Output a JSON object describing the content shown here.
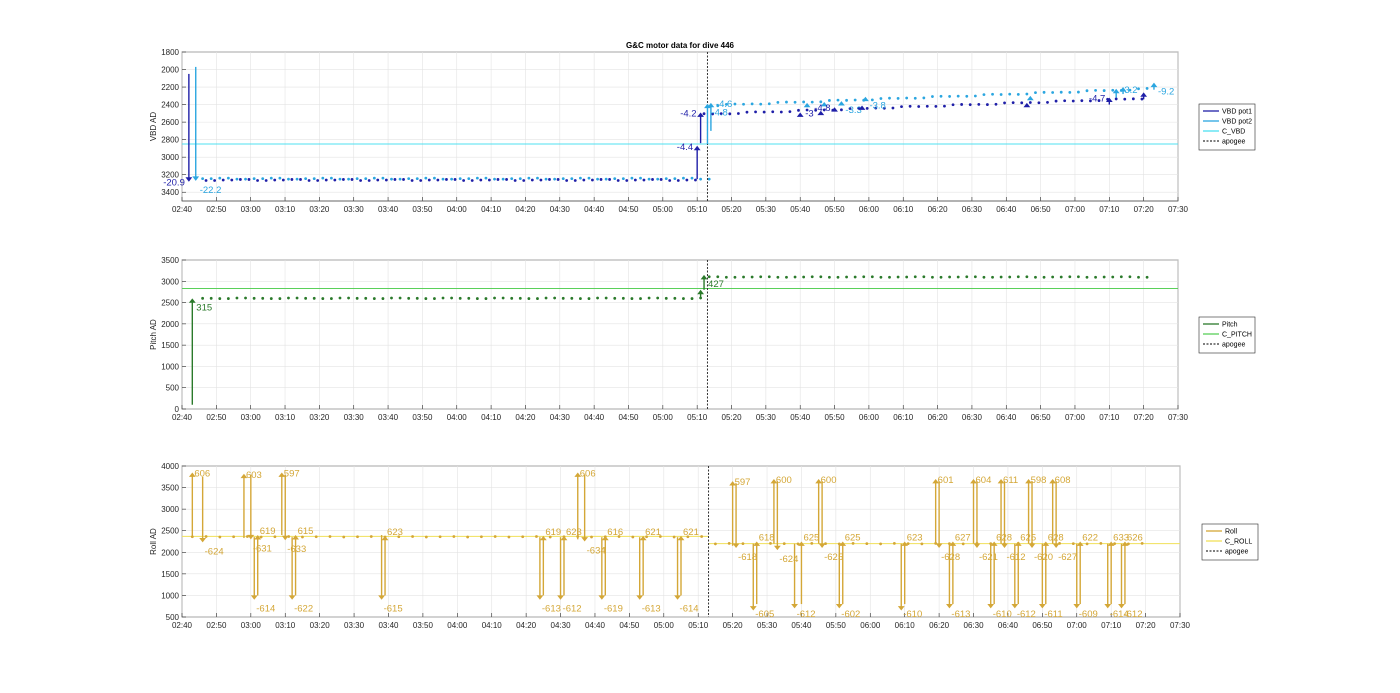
{
  "title": "G&C motor data for dive 446",
  "colors": {
    "vbd_pot1": "#1f1fa8",
    "vbd_pot2": "#2ba6e0",
    "c_vbd": "#4fe0f0",
    "pitch": "#2b7a2b",
    "c_pitch": "#5ad05a",
    "roll": "#d4a737",
    "c_roll": "#f0e05a",
    "apogee": "#333333"
  },
  "chart_data": [
    {
      "type": "scatter",
      "ylabel": "VBD AD",
      "xlim": [
        "02:40",
        "07:30"
      ],
      "ylim": [
        1800,
        3500
      ],
      "y_reversed": true,
      "yticks": [
        1800,
        2000,
        2200,
        2400,
        2600,
        2800,
        3000,
        3200,
        3400
      ],
      "xticks": [
        "02:40",
        "02:50",
        "03:00",
        "03:10",
        "03:20",
        "03:30",
        "03:40",
        "03:50",
        "04:00",
        "04:10",
        "04:20",
        "04:30",
        "04:40",
        "04:50",
        "05:00",
        "05:10",
        "05:20",
        "05:30",
        "05:40",
        "05:50",
        "06:00",
        "06:10",
        "06:20",
        "06:30",
        "06:40",
        "06:50",
        "07:00",
        "07:10",
        "07:20",
        "07:30"
      ],
      "grid": true,
      "legend": {
        "placement": "right",
        "entries": [
          "VBD pot1",
          "VBD pot2",
          "C_VBD",
          "apogee"
        ]
      },
      "reference_line": {
        "name": "C_VBD",
        "y": 2850
      },
      "apogee": "05:13",
      "series": [
        {
          "name": "VBD pot1",
          "dots": {
            "t0": "02:47",
            "t1": "07:20",
            "step": 2.5,
            "y_before": 3260,
            "y_after_start": 2510,
            "y_after_end": 2330,
            "switch": "05:12"
          }
        },
        {
          "name": "VBD pot2",
          "dots": {
            "t0": "02:46",
            "t1": "07:22",
            "step": 2.5,
            "y_before": 3245,
            "y_after_start": 2410,
            "y_after_end": 2220,
            "switch": "05:14"
          }
        }
      ],
      "moves": [
        {
          "series": "VBD pot1",
          "t": "02:42",
          "from": 2050,
          "to": 3280,
          "label": "-20.9",
          "label_side": "left"
        },
        {
          "series": "VBD pot2",
          "t": "02:44",
          "from": 1970,
          "to": 3270,
          "label": "-22.2",
          "label_side": "right-below"
        },
        {
          "series": "VBD pot1",
          "t": "05:10",
          "from": 3250,
          "to": 2870,
          "label": "-4.4",
          "label_side": "left"
        },
        {
          "series": "VBD pot1",
          "t": "05:11",
          "from": 2840,
          "to": 2490,
          "label": "-4.2",
          "label_side": "left"
        },
        {
          "series": "VBD pot2",
          "t": "05:13",
          "from": 2850,
          "to": 2390,
          "label": "-4.8",
          "label_side": "right-below"
        },
        {
          "series": "VBD pot2",
          "t": "05:14",
          "from": 2700,
          "to": 2380,
          "label": "-4.6",
          "label_side": "right-mid"
        },
        {
          "series": "VBD pot1",
          "t": "05:40",
          "from": 2520,
          "to": 2490,
          "label": "-3",
          "label_side": "right-mid"
        },
        {
          "series": "VBD pot2",
          "t": "05:42",
          "from": 2430,
          "to": 2380,
          "label": "",
          "label_side": "none"
        },
        {
          "series": "VBD pot1",
          "t": "05:46",
          "from": 2500,
          "to": 2470,
          "label": "",
          "label_side": "none"
        },
        {
          "series": "VBD pot2",
          "t": "05:47",
          "from": 2410,
          "to": 2370,
          "label": "",
          "label_side": "none"
        },
        {
          "series": "VBD pot1",
          "t": "05:50",
          "from": 2460,
          "to": 2430,
          "label": "-4.8",
          "label_side": "left"
        },
        {
          "series": "VBD pot2",
          "t": "05:52",
          "from": 2400,
          "to": 2360,
          "label": "-3.3",
          "label_side": "right-below"
        },
        {
          "series": "VBD pot1",
          "t": "05:58",
          "from": 2440,
          "to": 2410,
          "label": "",
          "label_side": "none"
        },
        {
          "series": "VBD pot2",
          "t": "05:59",
          "from": 2350,
          "to": 2310,
          "label": "-3.8",
          "label_side": "right-below"
        },
        {
          "series": "VBD pot1",
          "t": "06:46",
          "from": 2410,
          "to": 2380,
          "label": "",
          "label_side": "none"
        },
        {
          "series": "VBD pot2",
          "t": "06:47",
          "from": 2340,
          "to": 2300,
          "label": "",
          "label_side": "none"
        },
        {
          "series": "VBD pot1",
          "t": "07:10",
          "from": 2400,
          "to": 2320,
          "label": "-4.7",
          "label_side": "left"
        },
        {
          "series": "VBD pot2",
          "t": "07:12",
          "from": 2320,
          "to": 2220,
          "label": "-3.2",
          "label_side": "right-mid"
        },
        {
          "series": "VBD pot2",
          "t": "07:14",
          "from": 2280,
          "to": 2200,
          "label": "",
          "label_side": "none"
        },
        {
          "series": "VBD pot1",
          "t": "07:20",
          "from": 2340,
          "to": 2260,
          "label": "",
          "label_side": "none"
        },
        {
          "series": "VBD pot2",
          "t": "07:23",
          "from": 2230,
          "to": 2150,
          "label": "-9.2",
          "label_side": "right-below"
        }
      ]
    },
    {
      "type": "scatter",
      "ylabel": "Pitch AD",
      "xlim": [
        "02:40",
        "07:30"
      ],
      "ylim": [
        0,
        3500
      ],
      "yticks": [
        0,
        500,
        1000,
        1500,
        2000,
        2500,
        3000,
        3500
      ],
      "xticks": [
        "02:40",
        "02:50",
        "03:00",
        "03:10",
        "03:20",
        "03:30",
        "03:40",
        "03:50",
        "04:00",
        "04:10",
        "04:20",
        "04:30",
        "04:40",
        "04:50",
        "05:00",
        "05:10",
        "05:20",
        "05:30",
        "05:40",
        "05:50",
        "06:00",
        "06:10",
        "06:20",
        "06:30",
        "06:40",
        "06:50",
        "07:00",
        "07:10",
        "07:20",
        "07:30"
      ],
      "grid": true,
      "legend": {
        "placement": "right",
        "entries": [
          "Pitch",
          "C_PITCH",
          "apogee"
        ]
      },
      "reference_line": {
        "name": "C_PITCH",
        "y": 2830
      },
      "apogee": "05:13",
      "series": [
        {
          "name": "Pitch",
          "dots": {
            "t0": "02:46",
            "t1": "07:21",
            "step": 2.5,
            "y_before": 2600,
            "y_after_start": 3100,
            "y_after_end": 3100,
            "switch": "05:13"
          }
        }
      ],
      "moves": [
        {
          "series": "Pitch",
          "t": "02:43",
          "from": 100,
          "to": 2600,
          "label": "315",
          "label_side": "right-below"
        },
        {
          "series": "Pitch",
          "t": "05:11",
          "from": 2600,
          "to": 2800,
          "label": "",
          "label_side": "none"
        },
        {
          "series": "Pitch",
          "t": "05:12",
          "from": 2800,
          "to": 3150,
          "label": "427",
          "label_side": "right-below"
        }
      ]
    },
    {
      "type": "scatter",
      "ylabel": "Roll AD",
      "xlim": [
        "02:40",
        "07:30"
      ],
      "ylim": [
        500,
        4000
      ],
      "yticks": [
        500,
        1000,
        1500,
        2000,
        2500,
        3000,
        3500,
        4000
      ],
      "xticks": [
        "02:40",
        "02:50",
        "03:00",
        "03:10",
        "03:20",
        "03:30",
        "03:40",
        "03:50",
        "04:00",
        "04:10",
        "04:20",
        "04:30",
        "04:40",
        "04:50",
        "05:00",
        "05:10",
        "05:20",
        "05:30",
        "05:40",
        "05:50",
        "06:00",
        "06:10",
        "06:20",
        "06:30",
        "06:40",
        "06:50",
        "07:00",
        "07:10",
        "07:20",
        "07:30"
      ],
      "grid": true,
      "legend": {
        "placement": "right",
        "entries": [
          "Roll",
          "C_ROLL",
          "apogee"
        ]
      },
      "reference_line": {
        "name": "C_ROLL",
        "y_before": 2370,
        "y_after": 2200,
        "switch": "05:13"
      },
      "apogee": "05:13",
      "series": [
        {
          "name": "Roll",
          "dots": {
            "t0": "02:43",
            "t1": "07:20",
            "step": 4,
            "y_before": 2360,
            "y_after_start": 2200,
            "y_after_end": 2200,
            "switch": "05:13"
          }
        }
      ],
      "moves": [
        {
          "t": "02:43",
          "from": 2350,
          "to": 3850,
          "label": "606",
          "label_side": "top"
        },
        {
          "t": "02:46",
          "from": 3750,
          "to": 2230,
          "label": "-624",
          "label_side": "below"
        },
        {
          "t": "02:58",
          "from": 2330,
          "to": 3820,
          "label": "603",
          "label_side": "top"
        },
        {
          "t": "03:00",
          "from": 3800,
          "to": 2300,
          "label": "-631",
          "label_side": "below"
        },
        {
          "t": "03:01",
          "from": 2350,
          "to": 900,
          "label": "-614",
          "label_side": "bottom"
        },
        {
          "t": "03:02",
          "from": 1000,
          "to": 2400,
          "label": "619",
          "label_side": "above-mid"
        },
        {
          "t": "03:09",
          "from": 2400,
          "to": 3850,
          "label": "597",
          "label_side": "top"
        },
        {
          "t": "03:10",
          "from": 3800,
          "to": 2280,
          "label": "-633",
          "label_side": "below"
        },
        {
          "t": "03:12",
          "from": 2350,
          "to": 900,
          "label": "-622",
          "label_side": "bottom"
        },
        {
          "t": "03:13",
          "from": 1000,
          "to": 2400,
          "label": "615",
          "label_side": "above-mid"
        },
        {
          "t": "03:38",
          "from": 2400,
          "to": 900,
          "label": "-615",
          "label_side": "bottom"
        },
        {
          "t": "03:39",
          "from": 1000,
          "to": 2380,
          "label": "623",
          "label_side": "above-mid"
        },
        {
          "t": "04:24",
          "from": 2350,
          "to": 900,
          "label": "-613",
          "label_side": "bottom"
        },
        {
          "t": "04:25",
          "from": 1000,
          "to": 2380,
          "label": "619",
          "label_side": "above-mid"
        },
        {
          "t": "04:30",
          "from": 2350,
          "to": 900,
          "label": "-612",
          "label_side": "bottom"
        },
        {
          "t": "04:31",
          "from": 1000,
          "to": 2380,
          "label": "623",
          "label_side": "above-mid"
        },
        {
          "t": "04:35",
          "from": 2300,
          "to": 3850,
          "label": "606",
          "label_side": "top"
        },
        {
          "t": "04:37",
          "from": 3800,
          "to": 2250,
          "label": "-634",
          "label_side": "below"
        },
        {
          "t": "04:42",
          "from": 2350,
          "to": 900,
          "label": "-619",
          "label_side": "bottom"
        },
        {
          "t": "04:43",
          "from": 1000,
          "to": 2380,
          "label": "616",
          "label_side": "above-mid"
        },
        {
          "t": "04:53",
          "from": 2350,
          "to": 900,
          "label": "-613",
          "label_side": "bottom"
        },
        {
          "t": "04:54",
          "from": 1000,
          "to": 2380,
          "label": "621",
          "label_side": "above-mid"
        },
        {
          "t": "05:04",
          "from": 2350,
          "to": 900,
          "label": "-614",
          "label_side": "bottom"
        },
        {
          "t": "05:05",
          "from": 1000,
          "to": 2380,
          "label": "621",
          "label_side": "above-mid"
        },
        {
          "t": "05:20",
          "from": 2150,
          "to": 3650,
          "label": "597",
          "label_side": "top"
        },
        {
          "t": "05:21",
          "from": 3600,
          "to": 2100,
          "label": "-618",
          "label_side": "below"
        },
        {
          "t": "05:26",
          "from": 2200,
          "to": 650,
          "label": "-605",
          "label_side": "bottom"
        },
        {
          "t": "05:27",
          "from": 800,
          "to": 2250,
          "label": "618",
          "label_side": "above-mid"
        },
        {
          "t": "05:32",
          "from": 2200,
          "to": 3700,
          "label": "600",
          "label_side": "top"
        },
        {
          "t": "05:33",
          "from": 3650,
          "to": 2050,
          "label": "-624",
          "label_side": "below"
        },
        {
          "t": "05:38",
          "from": 2200,
          "to": 700,
          "label": "-612",
          "label_side": "bottom"
        },
        {
          "t": "05:40",
          "from": 800,
          "to": 2250,
          "label": "625",
          "label_side": "above-mid"
        },
        {
          "t": "05:45",
          "from": 2200,
          "to": 3700,
          "label": "600",
          "label_side": "top"
        },
        {
          "t": "05:46",
          "from": 3650,
          "to": 2100,
          "label": "-625",
          "label_side": "below"
        },
        {
          "t": "05:51",
          "from": 2200,
          "to": 700,
          "label": "-602",
          "label_side": "bottom"
        },
        {
          "t": "05:52",
          "from": 800,
          "to": 2250,
          "label": "625",
          "label_side": "above-mid"
        },
        {
          "t": "06:09",
          "from": 2200,
          "to": 650,
          "label": "-610",
          "label_side": "bottom"
        },
        {
          "t": "06:10",
          "from": 800,
          "to": 2250,
          "label": "623",
          "label_side": "above-mid"
        },
        {
          "t": "06:19",
          "from": 2200,
          "to": 3700,
          "label": "601",
          "label_side": "top"
        },
        {
          "t": "06:20",
          "from": 3650,
          "to": 2100,
          "label": "-628",
          "label_side": "below"
        },
        {
          "t": "06:23",
          "from": 2200,
          "to": 700,
          "label": "-613",
          "label_side": "bottom"
        },
        {
          "t": "06:24",
          "from": 800,
          "to": 2250,
          "label": "627",
          "label_side": "above-mid"
        },
        {
          "t": "06:30",
          "from": 2200,
          "to": 3700,
          "label": "604",
          "label_side": "top"
        },
        {
          "t": "06:31",
          "from": 3650,
          "to": 2100,
          "label": "-621",
          "label_side": "below"
        },
        {
          "t": "06:35",
          "from": 2200,
          "to": 700,
          "label": "-610",
          "label_side": "bottom"
        },
        {
          "t": "06:36",
          "from": 800,
          "to": 2250,
          "label": "628",
          "label_side": "above-mid"
        },
        {
          "t": "06:38",
          "from": 2200,
          "to": 3700,
          "label": "611",
          "label_side": "top"
        },
        {
          "t": "06:39",
          "from": 3650,
          "to": 2100,
          "label": "-612",
          "label_side": "below"
        },
        {
          "t": "06:42",
          "from": 2200,
          "to": 700,
          "label": "-612",
          "label_side": "bottom"
        },
        {
          "t": "06:43",
          "from": 800,
          "to": 2250,
          "label": "625",
          "label_side": "above-mid"
        },
        {
          "t": "06:46",
          "from": 2200,
          "to": 3700,
          "label": "598",
          "label_side": "top"
        },
        {
          "t": "06:47",
          "from": 3650,
          "to": 2100,
          "label": "-620",
          "label_side": "below"
        },
        {
          "t": "06:50",
          "from": 2200,
          "to": 700,
          "label": "-611",
          "label_side": "bottom"
        },
        {
          "t": "06:51",
          "from": 800,
          "to": 2250,
          "label": "628",
          "label_side": "above-mid"
        },
        {
          "t": "06:53",
          "from": 2200,
          "to": 3700,
          "label": "608",
          "label_side": "top"
        },
        {
          "t": "06:54",
          "from": 3650,
          "to": 2100,
          "label": "-627",
          "label_side": "below"
        },
        {
          "t": "07:00",
          "from": 2200,
          "to": 700,
          "label": "-609",
          "label_side": "bottom"
        },
        {
          "t": "07:01",
          "from": 800,
          "to": 2250,
          "label": "622",
          "label_side": "above-mid"
        },
        {
          "t": "07:09",
          "from": 2200,
          "to": 700,
          "label": "-614",
          "label_side": "bottom"
        },
        {
          "t": "07:10",
          "from": 800,
          "to": 2250,
          "label": "633",
          "label_side": "above-mid"
        },
        {
          "t": "07:13",
          "from": 2200,
          "to": 700,
          "label": "-612",
          "label_side": "bottom"
        },
        {
          "t": "07:14",
          "from": 800,
          "to": 2250,
          "label": "626",
          "label_side": "above-mid"
        }
      ]
    }
  ]
}
